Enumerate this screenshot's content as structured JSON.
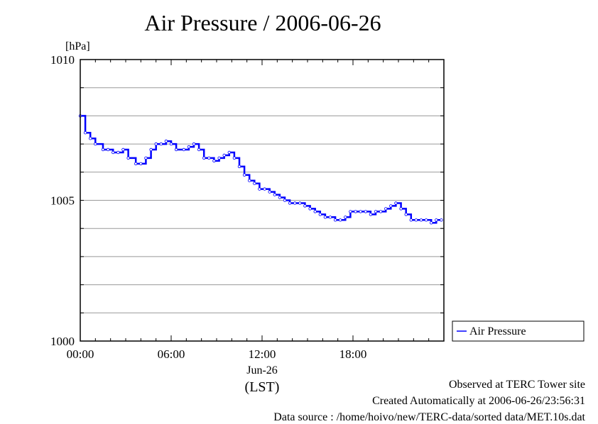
{
  "title": "Air Pressure / 2006-06-26",
  "chart_data": {
    "type": "line",
    "title": "Air Pressure / 2006-06-26",
    "ylabel": "[hPa]",
    "xlabel": "(LST)",
    "date_label": "Jun-26",
    "ylim": [
      1000,
      1010
    ],
    "xlim": [
      "00:00",
      "24:00"
    ],
    "x_ticks": [
      "00:00",
      "06:00",
      "12:00",
      "18:00"
    ],
    "y_ticks": [
      1000,
      1005,
      1010
    ],
    "grid": true,
    "legend": "right",
    "series": [
      {
        "name": "Air Pressure",
        "color": "#0000ff",
        "x": [
          "00:00",
          "00:20",
          "00:40",
          "01:00",
          "01:30",
          "01:50",
          "02:10",
          "02:30",
          "02:50",
          "03:10",
          "03:40",
          "04:00",
          "04:20",
          "04:40",
          "05:00",
          "05:20",
          "05:40",
          "06:00",
          "06:20",
          "06:50",
          "07:10",
          "07:30",
          "07:50",
          "08:10",
          "08:30",
          "08:50",
          "09:10",
          "09:30",
          "09:50",
          "10:10",
          "10:30",
          "10:50",
          "11:10",
          "11:30",
          "11:50",
          "12:10",
          "12:30",
          "12:50",
          "13:10",
          "13:30",
          "13:50",
          "14:10",
          "14:30",
          "14:50",
          "15:10",
          "15:30",
          "15:50",
          "16:10",
          "16:30",
          "16:50",
          "17:10",
          "17:30",
          "17:50",
          "18:10",
          "18:30",
          "18:50",
          "19:10",
          "19:30",
          "19:50",
          "20:10",
          "20:30",
          "20:50",
          "21:10",
          "21:30",
          "21:50",
          "22:10",
          "22:30",
          "22:50",
          "23:10",
          "23:30",
          "23:50"
        ],
        "values": [
          1008.0,
          1007.4,
          1007.2,
          1007.0,
          1006.8,
          1006.8,
          1006.7,
          1006.7,
          1006.8,
          1006.5,
          1006.3,
          1006.3,
          1006.5,
          1006.8,
          1007.0,
          1007.0,
          1007.1,
          1007.0,
          1006.8,
          1006.8,
          1006.9,
          1007.0,
          1006.8,
          1006.5,
          1006.5,
          1006.4,
          1006.5,
          1006.6,
          1006.7,
          1006.5,
          1006.2,
          1005.9,
          1005.7,
          1005.6,
          1005.4,
          1005.4,
          1005.3,
          1005.2,
          1005.1,
          1005.0,
          1004.9,
          1004.9,
          1004.9,
          1004.8,
          1004.7,
          1004.6,
          1004.5,
          1004.4,
          1004.4,
          1004.3,
          1004.3,
          1004.4,
          1004.6,
          1004.6,
          1004.6,
          1004.6,
          1004.5,
          1004.6,
          1004.6,
          1004.7,
          1004.8,
          1004.9,
          1004.7,
          1004.5,
          1004.3,
          1004.3,
          1004.3,
          1004.3,
          1004.2,
          1004.3,
          1004.3
        ]
      }
    ]
  },
  "footer": {
    "line1": "Observed at TERC Tower site",
    "line2": "Created Automatically at 2006-06-26/23:56:31",
    "line3": "Data source : /home/hoivo/new/TERC-data/sorted  data/MET.10s.dat"
  }
}
